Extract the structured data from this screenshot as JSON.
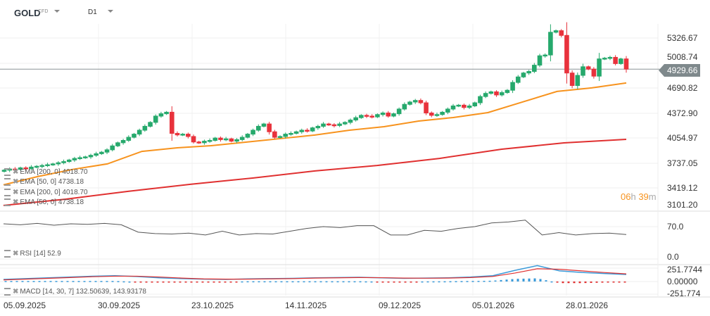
{
  "header": {
    "symbol": "GOLD",
    "symbol_type": "CFD",
    "timeframe": "D1"
  },
  "price_axis": [
    "5326.67",
    "5008.74",
    "4690.82",
    "4372.90",
    "4054.97",
    "3737.05",
    "3419.12",
    "3101.20"
  ],
  "last_price": "4929.66",
  "countdown": {
    "hours": "06",
    "h": "h",
    "minutes": "39",
    "m": "m"
  },
  "legends": {
    "ema1": "EMA [200, 0] 4018.70",
    "ema2": "EMA [50, 0] 4738.18",
    "ema3": "EMA [200, 0] 4018.70",
    "ema4": "EMA [50, 0] 4738.18",
    "rsi": "RSI [14] 52.9",
    "macd": "MACD [14, 30, 7] 132.50639, 143.93178"
  },
  "rsi_axis": [
    "70.0",
    "0.0"
  ],
  "macd_axis": [
    "251.7744",
    "0.00000",
    "-251.774"
  ],
  "date_labels": [
    "05.09.2025",
    "30.09.2025",
    "23.10.2025",
    "14.11.2025",
    "09.12.2025",
    "05.01.2026",
    "28.01.2026"
  ],
  "colors": {
    "up": "#26a96c",
    "down": "#e8323c",
    "ema50": "#f7931e",
    "ema200": "#e03030",
    "rsi": "#555555",
    "macd": "#3a9ad9",
    "signal": "#e03030",
    "countdown": "#f7931e"
  },
  "chart_data": {
    "type": "candlestick",
    "closes": [
      3640,
      3655,
      3650,
      3670,
      3660,
      3680,
      3690,
      3700,
      3710,
      3720,
      3735,
      3750,
      3770,
      3790,
      3800,
      3810,
      3830,
      3850,
      3870,
      3900,
      3950,
      3990,
      4020,
      4060,
      4100,
      4150,
      4200,
      4250,
      4330,
      4360,
      4380,
      4110,
      4090,
      4100,
      4070,
      4000,
      3990,
      4010,
      4020,
      4050,
      4030,
      4040,
      4010,
      4030,
      4060,
      4100,
      4150,
      4200,
      4230,
      4130,
      4060,
      4070,
      4100,
      4110,
      4130,
      4150,
      4140,
      4180,
      4200,
      4230,
      4220,
      4210,
      4230,
      4250,
      4280,
      4310,
      4340,
      4330,
      4320,
      4350,
      4370,
      4330,
      4360,
      4420,
      4480,
      4510,
      4530,
      4500,
      4370,
      4340,
      4350,
      4380,
      4420,
      4460,
      4470,
      4440,
      4460,
      4500,
      4580,
      4620,
      4640,
      4600,
      4630,
      4660,
      4760,
      4830,
      4880,
      4900,
      4980,
      5100,
      5110,
      5400,
      5420,
      5360,
      4880,
      4720,
      4850,
      4960,
      4930,
      4840,
      5060,
      5070,
      5080,
      5000,
      5060,
      4929.66
    ],
    "ema50": [
      3453,
      3560,
      3650,
      3720,
      3880,
      3925,
      3953,
      3997,
      4043,
      4088,
      4150,
      4195,
      4267,
      4312,
      4375,
      4510,
      4645,
      4690,
      4753
    ],
    "ema200": [
      3190,
      3270,
      3370,
      3460,
      3540,
      3630,
      3700,
      3790,
      3908,
      3988,
      4033
    ],
    "rsi": [
      76,
      74,
      77,
      73,
      76,
      75,
      77,
      74,
      58,
      55,
      54,
      56,
      52,
      60,
      52,
      55,
      54,
      60,
      66,
      70,
      68,
      72,
      72,
      52,
      52,
      62,
      60,
      66,
      70,
      78,
      80,
      84,
      52,
      57,
      52,
      55,
      56,
      52.9
    ],
    "macd": [
      40,
      55,
      70,
      85,
      100,
      110,
      95,
      70,
      55,
      45,
      40,
      50,
      55,
      60,
      70,
      75,
      80,
      70,
      60,
      65,
      70,
      85,
      110,
      210,
      300,
      200,
      170,
      150,
      132.5
    ],
    "signal": [
      30,
      45,
      60,
      75,
      90,
      100,
      100,
      85,
      65,
      50,
      45,
      45,
      50,
      55,
      65,
      70,
      75,
      72,
      65,
      62,
      65,
      75,
      95,
      160,
      240,
      230,
      200,
      170,
      143.9
    ],
    "price_ylim": [
      3101.2,
      5326.67
    ],
    "rsi_ylim": [
      0,
      100
    ],
    "macd_ylim": [
      -251.774,
      251.7744
    ]
  }
}
